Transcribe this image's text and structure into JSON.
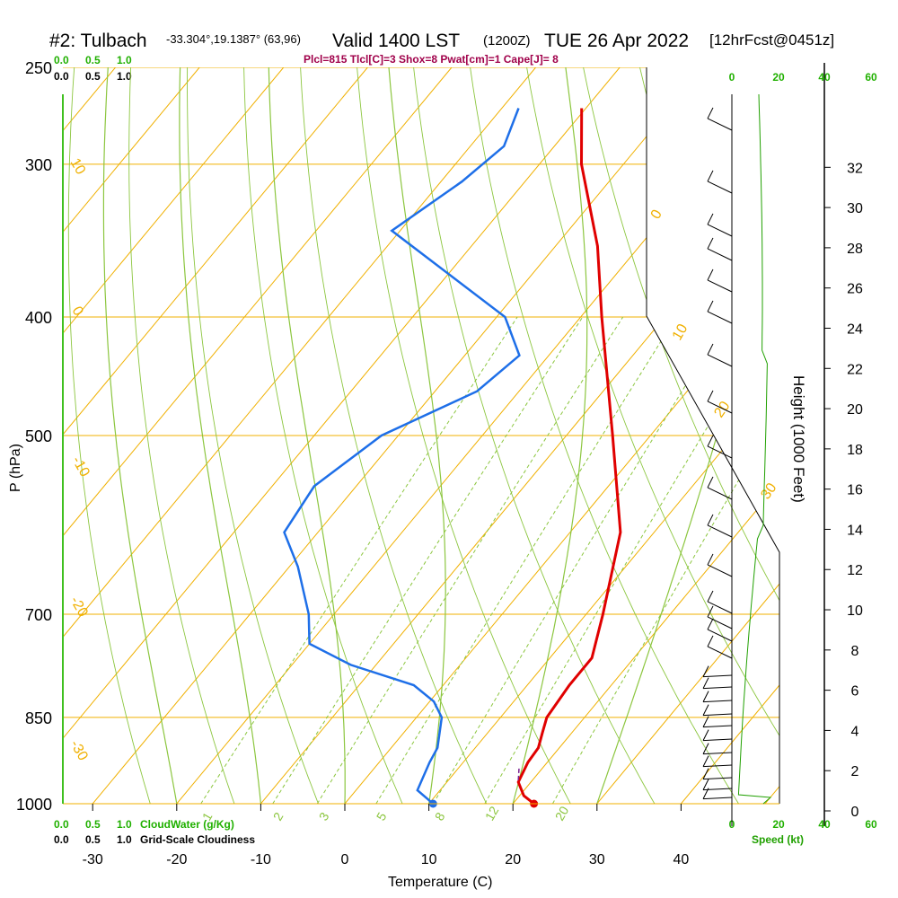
{
  "header": {
    "station": "#2: Tulbach",
    "coords": "-33.304°,19.1387° (63,96)",
    "valid": "Valid 1400 LST",
    "utc": "(1200Z)",
    "date": "TUE 26 Apr 2022",
    "forecast": "[12hrFcst@0451z]",
    "params": "Plcl=815 Tlcl[C]=3 Shox=8 Pwat[cm]=1 Cape[J]= 8"
  },
  "labels": {
    "top_scale_green": [
      "0.0",
      "0.5",
      "1.0"
    ],
    "top_scale_black": [
      "0.0",
      "0.5",
      "1.0"
    ],
    "bottom_scale_green": [
      "0.0",
      "0.5",
      "1.0"
    ],
    "bottom_scale_black": [
      "0.0",
      "0.5",
      "1.0"
    ],
    "cloudwater": "CloudWater (g/Kg)",
    "cloudiness": "Grid-Scale Cloudiness",
    "speed_unit": "Speed (kt)",
    "height_axis": "Height (1000 Feet)"
  },
  "colors": {
    "isotherm": "#f0b000",
    "dry_adiabat": "#8cc63f",
    "mixing_ratio": "#8cc63f",
    "temperature": "#e00000",
    "dewpoint": "#1e6fe8",
    "title_params": "#a0004a",
    "scale_green": "#20b000",
    "speed_line": "#20a000",
    "parcel": "#7a2090"
  },
  "chart_data": {
    "type": "skew-t",
    "xlabel": "Temperature (C)",
    "ylabel": "P (hPa)",
    "pressure_levels": [
      250,
      300,
      400,
      500,
      700,
      850,
      1000
    ],
    "temp_ticks": [
      -30,
      -20,
      -10,
      0,
      10,
      20,
      30,
      40
    ],
    "height_ticks_kft": [
      0,
      2,
      4,
      6,
      8,
      10,
      12,
      14,
      16,
      18,
      20,
      22,
      24,
      26,
      28,
      30,
      32
    ],
    "speed_ticks_kt": [
      0,
      20,
      40,
      60
    ],
    "isotherm_labels": [
      "0",
      "10",
      "20",
      "30",
      "10",
      "0",
      "-10",
      "-20",
      "-30"
    ],
    "mixing_ratio_labels": [
      "1",
      "2",
      "3",
      "5",
      "8",
      "12",
      "20"
    ],
    "temperature_profile": [
      {
        "p": 1000,
        "t": 22.5
      },
      {
        "p": 985,
        "t": 20.5
      },
      {
        "p": 960,
        "t": 18.5
      },
      {
        "p": 925,
        "t": 17.7
      },
      {
        "p": 900,
        "t": 17.5
      },
      {
        "p": 875,
        "t": 16.5
      },
      {
        "p": 850,
        "t": 15.5
      },
      {
        "p": 800,
        "t": 15.0
      },
      {
        "p": 760,
        "t": 15.0
      },
      {
        "p": 700,
        "t": 12.0
      },
      {
        "p": 600,
        "t": 6.0
      },
      {
        "p": 500,
        "t": -4.5
      },
      {
        "p": 400,
        "t": -17.5
      },
      {
        "p": 350,
        "t": -25.0
      },
      {
        "p": 300,
        "t": -35.0
      },
      {
        "p": 270,
        "t": -40.5
      }
    ],
    "dewpoint_profile": [
      {
        "p": 1000,
        "t": 10.5
      },
      {
        "p": 975,
        "t": 7.3
      },
      {
        "p": 925,
        "t": 6.0
      },
      {
        "p": 900,
        "t": 5.5
      },
      {
        "p": 850,
        "t": 3.0
      },
      {
        "p": 825,
        "t": 0.5
      },
      {
        "p": 800,
        "t": -3.5
      },
      {
        "p": 770,
        "t": -13.0
      },
      {
        "p": 740,
        "t": -20.0
      },
      {
        "p": 700,
        "t": -23.0
      },
      {
        "p": 640,
        "t": -29.0
      },
      {
        "p": 600,
        "t": -34.0
      },
      {
        "p": 550,
        "t": -35.0
      },
      {
        "p": 500,
        "t": -32.0
      },
      {
        "p": 460,
        "t": -25.0
      },
      {
        "p": 430,
        "t": -23.5
      },
      {
        "p": 400,
        "t": -29.0
      },
      {
        "p": 340,
        "t": -51.0
      },
      {
        "p": 310,
        "t": -47.5
      },
      {
        "p": 290,
        "t": -46.0
      },
      {
        "p": 270,
        "t": -48.0
      }
    ],
    "surface_temperature": 22.5,
    "surface_dewpoint": 10.5
  }
}
